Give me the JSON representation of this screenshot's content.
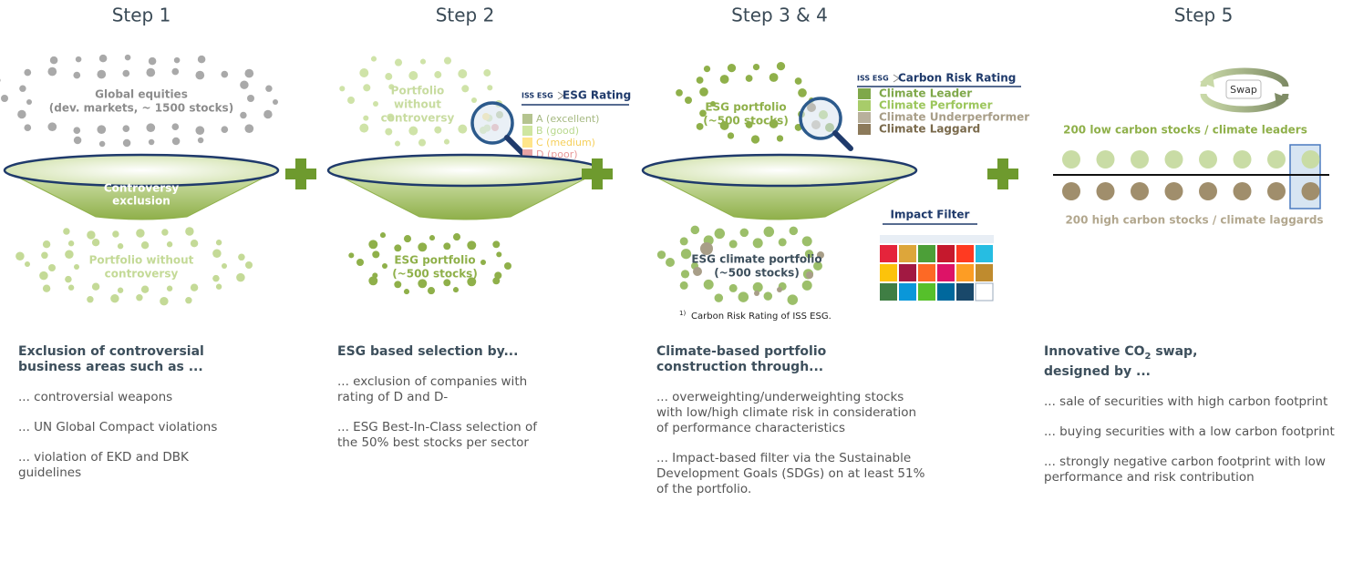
{
  "steps": [
    {
      "title": "Step 1",
      "top_label": [
        "Global equities",
        "(dev. markets, ~ 1500 stocks)"
      ],
      "funnel_label": [
        "Controversy",
        "exclusion"
      ],
      "bottom_label": [
        "Portfolio without",
        "controversy"
      ],
      "heading": [
        "Exclusion of controversial",
        "business areas such as ..."
      ],
      "items": [
        "... controversial weapons",
        "... UN Global Compact violations",
        "... violation of EKD and DBK guidelines"
      ]
    },
    {
      "title": "Step 2",
      "top_label": [
        "Portfolio",
        "without",
        "controversy"
      ],
      "rating": {
        "logo": "ISS ESG",
        "title": "ESG Rating",
        "legend": [
          "A (excellent)",
          "B (good)",
          "C (medium)",
          "D (poor)"
        ]
      },
      "bottom_label": [
        "ESG portfolio",
        "(~500 stocks)"
      ],
      "heading": [
        "ESG based selection by..."
      ],
      "items": [
        "... exclusion of companies with rating of D and D-",
        "... ESG Best-In-Class selection of the 50% best stocks per sector"
      ]
    },
    {
      "title": "Step 3 & 4",
      "top_label": [
        "ESG portfolio",
        "(~500 stocks)"
      ],
      "rating": {
        "logo": "ISS ESG",
        "title": "Carbon Risk Rating",
        "legend": [
          "Climate Leader",
          "Climate Performer",
          "Climate Underperformer",
          "Climate Laggard"
        ]
      },
      "impact_filter": "Impact Filter",
      "bottom_label": [
        "ESG climate portfolio",
        "(~500 stocks)"
      ],
      "footnote_mark": "1)",
      "footnote": "Carbon Risk Rating of ISS ESG.",
      "heading": [
        "Climate-based portfolio",
        "construction through..."
      ],
      "items": [
        "... overweighting/underweighting stocks with low/high climate risk in consideration of performance characteristics",
        "... Impact-based filter via the Sustainable Development Goals (SDGs) on at least 51% of the portfolio."
      ]
    },
    {
      "title": "Step 5",
      "swap": "Swap",
      "top_label": [
        "200 low carbon stocks / climate leaders"
      ],
      "bottom_label": [
        "200 high carbon stocks / climate laggards"
      ],
      "heading": [
        "Innovative CO",
        " swap,",
        "designed by ..."
      ],
      "heading_sub": "2",
      "items": [
        "... sale of securities with high carbon footprint",
        "... buying securities with a low carbon footprint",
        "... strongly negative carbon footprint with low performance and risk contribution"
      ]
    }
  ]
}
